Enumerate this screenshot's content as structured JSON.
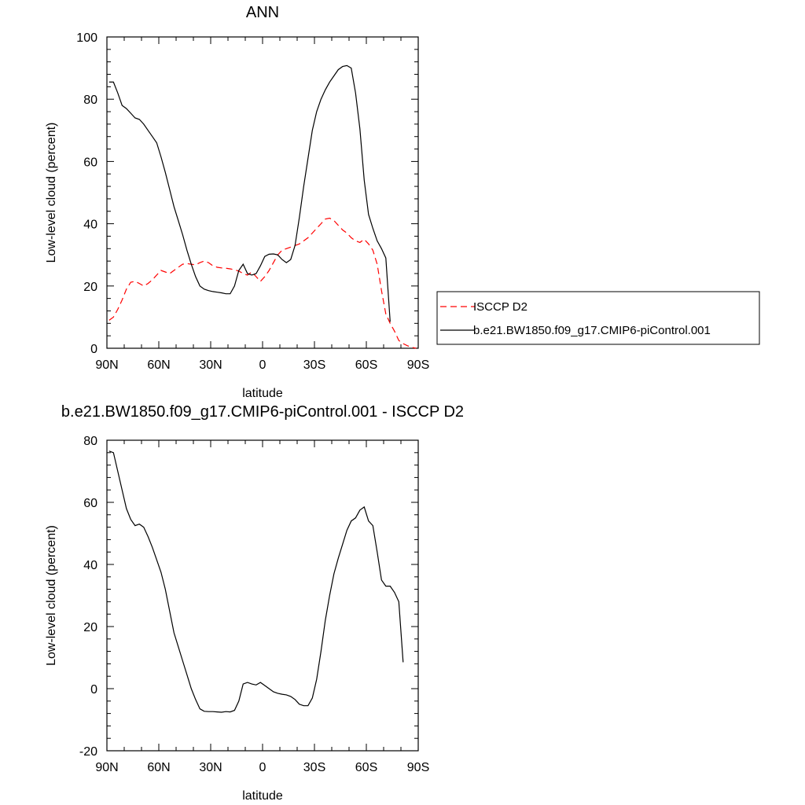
{
  "chart_data": [
    {
      "type": "line",
      "title": "ANN",
      "xlabel": "latitude",
      "ylabel": "Low-level cloud (percent)",
      "xlim": [
        90,
        -90
      ],
      "ylim": [
        0,
        100
      ],
      "x_ticks": [
        90,
        60,
        30,
        0,
        -30,
        -60,
        -90
      ],
      "x_ticklabels": [
        "90N",
        "60N",
        "30N",
        "0",
        "30S",
        "60S",
        "90S"
      ],
      "y_ticks": [
        0,
        20,
        40,
        60,
        80,
        100
      ],
      "y_ticklabels": [
        "0",
        "20",
        "40",
        "60",
        "80",
        "100"
      ],
      "legend_position": "right",
      "series": [
        {
          "name": "ISCCP D2",
          "color": "#ff0000",
          "dash": "dashed",
          "x": [
            88.75,
            86.25,
            83.75,
            81.25,
            78.75,
            76.25,
            73.75,
            71.25,
            68.75,
            66.25,
            63.75,
            61.25,
            58.75,
            56.25,
            53.75,
            51.25,
            48.75,
            46.25,
            43.75,
            41.25,
            38.75,
            36.25,
            33.75,
            31.25,
            28.75,
            26.25,
            23.75,
            21.25,
            18.75,
            16.25,
            13.75,
            11.25,
            8.75,
            6.25,
            3.75,
            1.25,
            -1.25,
            -3.75,
            -6.25,
            -8.75,
            -11.25,
            -13.75,
            -16.25,
            -18.75,
            -21.25,
            -23.75,
            -26.25,
            -28.75,
            -31.25,
            -33.75,
            -36.25,
            -38.75,
            -41.25,
            -43.75,
            -46.25,
            -48.75,
            -51.25,
            -53.75,
            -56.25,
            -58.75,
            -61.25,
            -63.75,
            -66.25,
            -68.75,
            -71.25,
            -73.75,
            -76.25,
            -78.75,
            -81.25,
            -83.75,
            -86.25,
            -88.75
          ],
          "y": [
            9.0,
            10.0,
            12.5,
            15.5,
            19.0,
            21.2,
            21.5,
            20.8,
            20.0,
            20.8,
            22.0,
            23.5,
            25.0,
            24.5,
            24.0,
            25.0,
            26.0,
            27.0,
            27.2,
            27.0,
            26.8,
            27.5,
            28.0,
            27.5,
            26.5,
            26.0,
            25.8,
            25.7,
            25.5,
            25.2,
            24.8,
            24.0,
            23.5,
            24.5,
            23.0,
            21.5,
            23.0,
            25.0,
            27.5,
            30.0,
            31.5,
            32.0,
            32.5,
            33.0,
            33.5,
            34.5,
            35.5,
            37.0,
            38.5,
            40.0,
            41.5,
            41.8,
            41.0,
            39.5,
            38.0,
            37.0,
            35.5,
            34.5,
            34.0,
            35.0,
            33.5,
            31.5,
            27.0,
            18.5,
            11.0,
            8.0,
            5.5,
            2.5,
            1.5,
            0.8,
            0.3,
            0.0
          ]
        },
        {
          "name": "b.e21.BW1850.f09_g17.CMIP6-piControl.001",
          "color": "#000000",
          "dash": "solid",
          "x": [
            88.75,
            86.25,
            83.75,
            81.25,
            78.75,
            76.25,
            73.75,
            71.25,
            68.75,
            66.25,
            63.75,
            61.25,
            58.75,
            56.25,
            53.75,
            51.25,
            48.75,
            46.25,
            43.75,
            41.25,
            38.75,
            36.25,
            33.75,
            31.25,
            28.75,
            26.25,
            23.75,
            21.25,
            18.75,
            16.25,
            13.75,
            11.25,
            8.75,
            6.25,
            3.75,
            1.25,
            -1.25,
            -3.75,
            -6.25,
            -8.75,
            -11.25,
            -13.75,
            -16.25,
            -18.75,
            -21.25,
            -23.75,
            -26.25,
            -28.75,
            -31.25,
            -33.75,
            -36.25,
            -38.75,
            -41.25,
            -43.75,
            -46.25,
            -48.75,
            -51.25,
            -53.75,
            -56.25,
            -58.75,
            -61.25,
            -63.75,
            -66.25,
            -68.75,
            -71.25,
            -73.75,
            -76.25,
            -78.75,
            -81.25,
            -83.75,
            -86.25,
            -88.75
          ],
          "y": [
            85.5,
            85.5,
            82.0,
            78.0,
            77.0,
            75.5,
            74.0,
            73.5,
            72.0,
            70.0,
            68.0,
            66.0,
            61.5,
            56.5,
            51.0,
            45.5,
            41.0,
            36.5,
            31.5,
            27.0,
            23.0,
            20.0,
            19.0,
            18.5,
            18.2,
            18.0,
            17.8,
            17.5,
            17.5,
            20.0,
            25.0,
            27.0,
            24.0,
            23.5,
            24.0,
            26.5,
            29.5,
            30.2,
            30.3,
            30.0,
            28.5,
            27.5,
            28.5,
            33.0,
            42.0,
            52.0,
            61.0,
            70.0,
            76.0,
            80.0,
            83.0,
            85.5,
            87.5,
            89.5,
            90.5,
            90.8,
            90.0,
            82.0,
            70.5,
            54.0,
            43.0,
            38.5,
            34.5,
            32.0,
            29.0,
            8.5,
            null,
            null,
            null,
            null,
            null,
            null
          ]
        }
      ]
    },
    {
      "type": "line",
      "title": "b.e21.BW1850.f09_g17.CMIP6-piControl.001 - ISCCP D2",
      "xlabel": "latitude",
      "ylabel": "Low-level cloud (percent)",
      "xlim": [
        90,
        -90
      ],
      "ylim": [
        -20,
        80
      ],
      "x_ticks": [
        90,
        60,
        30,
        0,
        -30,
        -60,
        -90
      ],
      "x_ticklabels": [
        "90N",
        "60N",
        "30N",
        "0",
        "30S",
        "60S",
        "90S"
      ],
      "y_ticks": [
        -20,
        0,
        20,
        40,
        60,
        80
      ],
      "y_ticklabels": [
        "-20",
        "0",
        "20",
        "40",
        "60",
        "80"
      ],
      "series": [
        {
          "color": "#000000",
          "dash": "solid",
          "x": [
            88.75,
            86.25,
            83.75,
            81.25,
            78.75,
            76.25,
            73.75,
            71.25,
            68.75,
            66.25,
            63.75,
            61.25,
            58.75,
            56.25,
            53.75,
            51.25,
            48.75,
            46.25,
            43.75,
            41.25,
            38.75,
            36.25,
            33.75,
            31.25,
            28.75,
            26.25,
            23.75,
            21.25,
            18.75,
            16.25,
            13.75,
            11.25,
            8.75,
            6.25,
            3.75,
            1.25,
            -1.25,
            -3.75,
            -6.25,
            -8.75,
            -11.25,
            -13.75,
            -16.25,
            -18.75,
            -21.25,
            -23.75,
            -26.25,
            -28.75,
            -31.25,
            -33.75,
            -36.25,
            -38.75,
            -41.25,
            -43.75,
            -46.25,
            -48.75,
            -51.25,
            -53.75,
            -56.25,
            -58.75,
            -61.25,
            -63.75,
            -66.25,
            -68.75,
            -71.25,
            -73.75,
            -76.25,
            -78.75,
            -81.25,
            -83.75,
            -86.25,
            -88.75
          ],
          "y": [
            76.5,
            76.0,
            70.0,
            64.0,
            58.0,
            54.5,
            52.5,
            53.0,
            52.0,
            49.0,
            45.5,
            41.5,
            37.5,
            32.0,
            25.0,
            18.0,
            13.5,
            9.0,
            4.5,
            0.0,
            -3.5,
            -6.5,
            -7.3,
            -7.4,
            -7.4,
            -7.5,
            -7.6,
            -7.4,
            -7.5,
            -7.0,
            -4.0,
            1.5,
            2.0,
            1.5,
            1.2,
            2.0,
            1.0,
            0.0,
            -1.0,
            -1.5,
            -1.8,
            -2.0,
            -2.5,
            -3.5,
            -5.0,
            -5.5,
            -5.5,
            -3.0,
            3.0,
            12.0,
            22.0,
            30.0,
            37.0,
            42.0,
            46.5,
            51.0,
            54.0,
            55.0,
            57.5,
            58.5,
            54.0,
            52.5,
            44.0,
            35.0,
            33.0,
            33.0,
            31.0,
            28.0,
            8.5,
            null,
            null,
            null
          ]
        }
      ]
    }
  ]
}
